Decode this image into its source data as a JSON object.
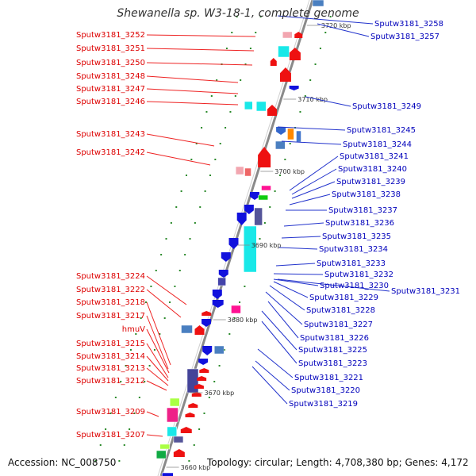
{
  "title": "Shewanella sp. W3-18-1, complete genome",
  "accession": "Accession: NC_008750",
  "topology": "Topology: circular; Length: 4,708,380 bp; Genes: 4,172",
  "colors": {
    "left_label": "#dd0000",
    "right_label": "#0000bb",
    "backbone": "#8a8a8a"
  },
  "kbp_marks": [
    "3720 kbp",
    "3710 kbp",
    "3700 kbp",
    "3690 kbp",
    "3680 kbp",
    "3670 kbp",
    "3660 kbp"
  ],
  "left_genes": [
    "Sputw3181_3252",
    "Sputw3181_3251",
    "Sputw3181_3250",
    "Sputw3181_3248",
    "Sputw3181_3247",
    "Sputw3181_3246",
    "Sputw3181_3243",
    "Sputw3181_3242",
    "Sputw3181_3224",
    "Sputw3181_3222",
    "Sputw3181_3218",
    "Sputw3181_3217",
    "hmuV",
    "Sputw3181_3215",
    "Sputw3181_3214",
    "Sputw3181_3213",
    "Sputw3181_3212",
    "Sputw3181_3209",
    "Sputw3181_3207"
  ],
  "right_genes": [
    "Sputw3181_3258",
    "Sputw3181_3257",
    "Sputw3181_3249",
    "Sputw3181_3245",
    "Sputw3181_3244",
    "Sputw3181_3241",
    "Sputw3181_3240",
    "Sputw3181_3239",
    "Sputw3181_3238",
    "Sputw3181_3237",
    "Sputw3181_3236",
    "Sputw3181_3235",
    "Sputw3181_3234",
    "Sputw3181_3233",
    "Sputw3181_3232",
    "Sputw3181_3231",
    "Sputw3181_3230",
    "Sputw3181_3229",
    "Sputw3181_3228",
    "Sputw3181_3227",
    "Sputw3181_3226",
    "Sputw3181_3225",
    "Sputw3181_3223",
    "Sputw3181_3221",
    "Sputw3181_3220",
    "Sputw3181_3219"
  ]
}
